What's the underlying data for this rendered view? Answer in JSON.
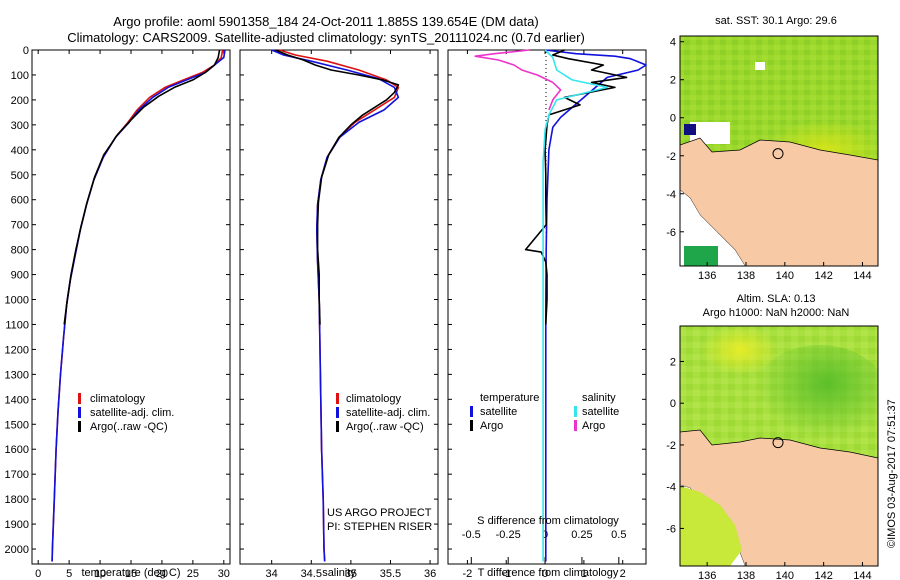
{
  "header": {
    "line1": "Argo profile: aoml 5901358_184 24-Oct-2011 1.885S 139.654E (DM data)",
    "line2": "Climatology: CARS2009. Satellite-adjusted climatology: synTS_20111024.nc (0.7d earlier)"
  },
  "colors": {
    "climatology": "#dd1111",
    "satellite": "#1111dd",
    "argo": "#000000",
    "s_satellite": "#33e6ee",
    "s_argo": "#ee33cc",
    "land": "#f7c9a5",
    "ocean_warm": "#98d62a"
  },
  "chart_data": [
    {
      "type": "line",
      "id": "temperature",
      "xlabel": "temperature (deg C)",
      "xlim": [
        -1,
        31
      ],
      "ylim": [
        2060,
        0
      ],
      "xticks": [
        "0",
        "5",
        "10",
        "15",
        "20",
        "25",
        "30"
      ],
      "xtick_values": [
        0,
        5,
        10,
        15,
        20,
        25,
        30
      ],
      "yticks": [
        "0",
        "100",
        "200",
        "300",
        "400",
        "500",
        "600",
        "700",
        "800",
        "900",
        "1000",
        "1100",
        "1200",
        "1300",
        "1400",
        "1500",
        "1600",
        "1700",
        "1800",
        "1900",
        "2000"
      ],
      "ytick_values": [
        0,
        100,
        200,
        300,
        400,
        500,
        600,
        700,
        800,
        900,
        1000,
        1100,
        1200,
        1300,
        1400,
        1500,
        1600,
        1700,
        1800,
        1900,
        2000
      ],
      "legend": [
        "climatology",
        "satellite-adj. clim.",
        "Argo(..raw -QC)"
      ],
      "series": [
        {
          "name": "climatology",
          "color_key": "climatology",
          "points": [
            [
              29.8,
              0
            ],
            [
              29.6,
              30
            ],
            [
              28.5,
              60
            ],
            [
              26.5,
              90
            ],
            [
              23.5,
              120
            ],
            [
              20.5,
              150
            ],
            [
              18,
              190
            ],
            [
              16,
              240
            ],
            [
              14.5,
              290
            ],
            [
              12.5,
              350
            ],
            [
              10.5,
              430
            ],
            [
              9,
              520
            ],
            [
              7.8,
              620
            ],
            [
              6.8,
              720
            ],
            [
              6,
              820
            ],
            [
              5.2,
              920
            ],
            [
              4.6,
              1020
            ],
            [
              4.1,
              1150
            ],
            [
              3.6,
              1300
            ],
            [
              3.2,
              1450
            ],
            [
              2.9,
              1600
            ],
            [
              2.6,
              1800
            ],
            [
              2.3,
              2000
            ],
            [
              2.25,
              2050
            ]
          ]
        },
        {
          "name": "satellite-adj. clim.",
          "color_key": "satellite",
          "points": [
            [
              30.2,
              0
            ],
            [
              30,
              30
            ],
            [
              28.5,
              60
            ],
            [
              27,
              90
            ],
            [
              24,
              120
            ],
            [
              21,
              150
            ],
            [
              18.5,
              190
            ],
            [
              16.3,
              240
            ],
            [
              14.7,
              290
            ],
            [
              12.5,
              350
            ],
            [
              10.5,
              430
            ],
            [
              9,
              520
            ],
            [
              7.8,
              620
            ],
            [
              6.8,
              720
            ],
            [
              6,
              820
            ],
            [
              5.2,
              920
            ],
            [
              4.6,
              1020
            ],
            [
              4.1,
              1150
            ],
            [
              3.6,
              1300
            ],
            [
              3.2,
              1450
            ],
            [
              2.9,
              1600
            ],
            [
              2.6,
              1800
            ],
            [
              2.3,
              2000
            ],
            [
              2.25,
              2050
            ]
          ]
        },
        {
          "name": "Argo(..raw -QC)",
          "color_key": "argo",
          "points": [
            [
              29.3,
              0
            ],
            [
              29.1,
              30
            ],
            [
              28.5,
              60
            ],
            [
              27,
              90
            ],
            [
              25,
              120
            ],
            [
              22,
              150
            ],
            [
              19.5,
              185
            ],
            [
              17,
              230
            ],
            [
              15,
              280
            ],
            [
              12.8,
              340
            ],
            [
              10.6,
              420
            ],
            [
              9.1,
              510
            ],
            [
              7.9,
              610
            ],
            [
              6.9,
              710
            ],
            [
              6.1,
              800
            ],
            [
              5.3,
              900
            ],
            [
              4.7,
              1000
            ],
            [
              4.2,
              1100
            ]
          ]
        }
      ]
    },
    {
      "type": "line",
      "id": "salinity",
      "xlabel": "salinity",
      "xlim": [
        33.6,
        36.1
      ],
      "ylim": [
        2060,
        0
      ],
      "xticks": [
        "34",
        "34.5",
        "35",
        "35.5",
        "36"
      ],
      "xtick_values": [
        34,
        34.5,
        35,
        35.5,
        36
      ],
      "legend": [
        "climatology",
        "satellite-adj. clim.",
        "Argo(..raw -QC)"
      ],
      "annotation": [
        "US ARGO PROJECT",
        "PI: STEPHEN RISER"
      ],
      "series": [
        {
          "name": "climatology",
          "color_key": "climatology",
          "points": [
            [
              34.1,
              0
            ],
            [
              34.3,
              20
            ],
            [
              34.7,
              45
            ],
            [
              35.1,
              80
            ],
            [
              35.45,
              120
            ],
            [
              35.6,
              150
            ],
            [
              35.55,
              190
            ],
            [
              35.3,
              240
            ],
            [
              35.05,
              290
            ],
            [
              34.85,
              350
            ],
            [
              34.7,
              430
            ],
            [
              34.62,
              520
            ],
            [
              34.58,
              620
            ],
            [
              34.57,
              720
            ],
            [
              34.58,
              850
            ],
            [
              34.6,
              1000
            ],
            [
              34.61,
              1200
            ],
            [
              34.62,
              1400
            ],
            [
              34.63,
              1600
            ],
            [
              34.65,
              1800
            ],
            [
              34.66,
              2000
            ],
            [
              34.67,
              2050
            ]
          ]
        },
        {
          "name": "satellite-adj. clim.",
          "color_key": "satellite",
          "points": [
            [
              34.0,
              0
            ],
            [
              34.15,
              20
            ],
            [
              34.5,
              45
            ],
            [
              34.95,
              80
            ],
            [
              35.35,
              115
            ],
            [
              35.55,
              150
            ],
            [
              35.6,
              190
            ],
            [
              35.42,
              240
            ],
            [
              35.1,
              290
            ],
            [
              34.86,
              350
            ],
            [
              34.7,
              430
            ],
            [
              34.62,
              520
            ],
            [
              34.58,
              620
            ],
            [
              34.57,
              720
            ],
            [
              34.58,
              850
            ],
            [
              34.6,
              1000
            ],
            [
              34.61,
              1200
            ],
            [
              34.62,
              1400
            ],
            [
              34.63,
              1600
            ],
            [
              34.65,
              1800
            ],
            [
              34.66,
              2000
            ],
            [
              34.67,
              2050
            ]
          ]
        },
        {
          "name": "Argo(..raw -QC)",
          "color_key": "argo",
          "points": [
            [
              34.05,
              0
            ],
            [
              34.2,
              20
            ],
            [
              34.4,
              40
            ],
            [
              34.55,
              60
            ],
            [
              34.75,
              80
            ],
            [
              35.1,
              100
            ],
            [
              35.4,
              120
            ],
            [
              35.6,
              140
            ],
            [
              35.55,
              170
            ],
            [
              35.45,
              200
            ],
            [
              35.3,
              230
            ],
            [
              35.15,
              260
            ],
            [
              35.0,
              300
            ],
            [
              34.85,
              350
            ],
            [
              34.72,
              420
            ],
            [
              34.63,
              510
            ],
            [
              34.59,
              610
            ],
            [
              34.58,
              700
            ],
            [
              34.58,
              800
            ],
            [
              34.6,
              900
            ],
            [
              34.6,
              1000
            ],
            [
              34.61,
              1100
            ]
          ]
        }
      ]
    },
    {
      "type": "line",
      "id": "difference",
      "xlabel": "T difference from climatology",
      "xlabel_top": "S difference from climatology",
      "xlim": [
        -2.5,
        2.6
      ],
      "ylim": [
        2060,
        0
      ],
      "xticks": [
        "-2",
        "-1",
        "0",
        "1",
        "2"
      ],
      "xtick_values": [
        -2,
        -1,
        0,
        1,
        2
      ],
      "sticks": [
        "-0.5",
        "-0.25",
        "0",
        "0.25",
        "0.5"
      ],
      "stick_values": [
        -1.9,
        -0.95,
        0,
        0.95,
        1.9
      ],
      "legend_left_title": "temperature",
      "legend_right_title": "salinity",
      "legend": [
        "satellite",
        "Argo",
        "satellite",
        "Argo"
      ],
      "series": [
        {
          "name": "T satellite",
          "color_key": "satellite",
          "points": [
            [
              0,
              0
            ],
            [
              0.8,
              15
            ],
            [
              1.8,
              25
            ],
            [
              2.2,
              35
            ],
            [
              2.6,
              60
            ],
            [
              2.4,
              80
            ],
            [
              1.6,
              110
            ],
            [
              1.3,
              150
            ],
            [
              1.0,
              190
            ],
            [
              0.7,
              230
            ],
            [
              0.4,
              270
            ],
            [
              0.2,
              310
            ],
            [
              0.1,
              400
            ],
            [
              0.05,
              600
            ],
            [
              0.03,
              800
            ],
            [
              0.02,
              1000
            ],
            [
              0.02,
              1200
            ],
            [
              0.02,
              1500
            ],
            [
              0.02,
              2000
            ],
            [
              0.02,
              2050
            ]
          ]
        },
        {
          "name": "T Argo",
          "color_key": "argo",
          "points": [
            [
              0.5,
              0
            ],
            [
              0.2,
              20
            ],
            [
              0.6,
              35
            ],
            [
              1.5,
              60
            ],
            [
              1.2,
              80
            ],
            [
              2.1,
              110
            ],
            [
              1.2,
              130
            ],
            [
              1.8,
              150
            ],
            [
              0.5,
              190
            ],
            [
              0.9,
              220
            ],
            [
              0.1,
              260
            ],
            [
              0.05,
              300
            ],
            [
              0,
              400
            ],
            [
              0.02,
              500
            ],
            [
              0.02,
              600
            ],
            [
              0.03,
              700
            ],
            [
              -0.5,
              800
            ],
            [
              -0.1,
              810
            ],
            [
              0.02,
              850
            ],
            [
              0.05,
              900
            ],
            [
              0.05,
              1000
            ],
            [
              0.02,
              1100
            ]
          ]
        },
        {
          "name": "S satellite",
          "color_key": "s_satellite",
          "points": [
            [
              0,
              0
            ],
            [
              0.2,
              30
            ],
            [
              0.3,
              80
            ],
            [
              0.7,
              120
            ],
            [
              1.6,
              150
            ],
            [
              0.3,
              200
            ],
            [
              0.1,
              260
            ],
            [
              0,
              320
            ],
            [
              -0.05,
              450
            ],
            [
              -0.05,
              700
            ],
            [
              -0.05,
              1000
            ],
            [
              -0.05,
              1300
            ],
            [
              -0.05,
              1600
            ],
            [
              -0.05,
              2000
            ],
            [
              -0.05,
              2050
            ]
          ]
        },
        {
          "name": "S Argo",
          "color_key": "s_argo",
          "points": [
            [
              -0.4,
              0
            ],
            [
              -1.3,
              15
            ],
            [
              -1.8,
              25
            ],
            [
              -1.2,
              40
            ],
            [
              -0.8,
              60
            ],
            [
              -0.6,
              80
            ],
            [
              -0.2,
              100
            ],
            [
              0.2,
              130
            ],
            [
              0.4,
              160
            ],
            [
              0.2,
              200
            ],
            [
              0.1,
              240
            ]
          ]
        }
      ]
    },
    {
      "type": "heatmap",
      "id": "sst_map",
      "title": "sat. SST: 30.1  Argo: 29.6",
      "xticks": [
        "136",
        "138",
        "140",
        "142",
        "144"
      ],
      "yticks": [
        "4",
        "2",
        "0",
        "-2",
        "-4",
        "-6"
      ],
      "xlim": [
        134.6,
        144.8
      ],
      "ylim": [
        -7.8,
        4.3
      ],
      "float_lon": 139.65,
      "float_lat": -1.89
    },
    {
      "type": "heatmap",
      "id": "sla_map",
      "title": "Altim. SLA: 0.13",
      "title2": "Argo h1000: NaN h2000: NaN",
      "xticks": [
        "136",
        "138",
        "140",
        "142",
        "144"
      ],
      "yticks": [
        "2",
        "0",
        "-2",
        "-4",
        "-6"
      ],
      "xlim": [
        134.6,
        144.8
      ],
      "ylim": [
        -7.8,
        3.7
      ],
      "float_lon": 139.65,
      "float_lat": -1.89
    }
  ],
  "watermark": "©IMOS 03-Aug-2017 07:51:37"
}
